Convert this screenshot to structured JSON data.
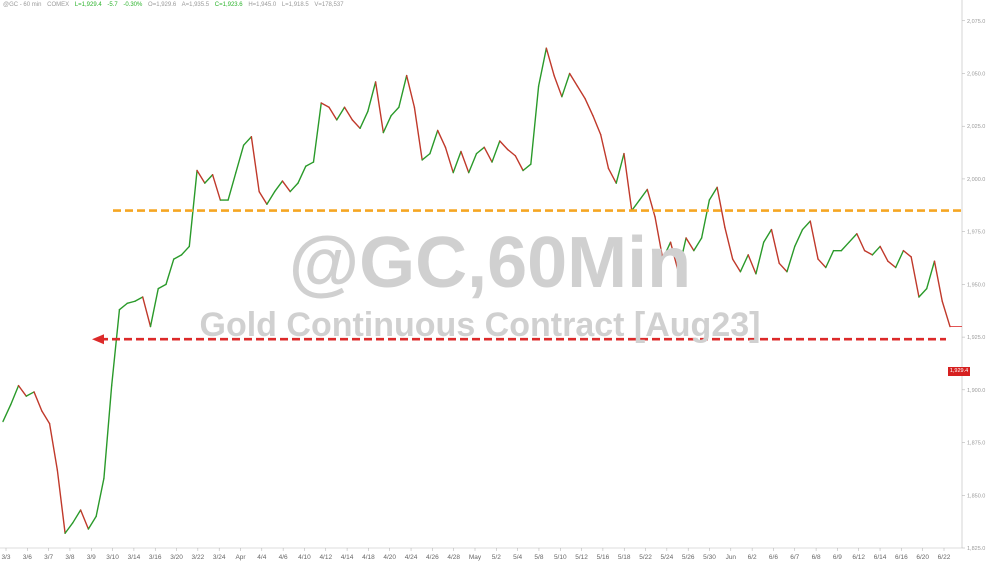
{
  "header": {
    "symbol": "@GC - 60 min",
    "exchange": "COMEX",
    "last": "L=1,929.4",
    "change": "-5.7",
    "pct": "-0.30%",
    "open": "O=1,929.6",
    "ask": "A=1,935.5",
    "close": "C=1,923.6",
    "high": "H=1,945.0",
    "low": "L=1,918.5",
    "volume": "V=178,537"
  },
  "watermark": {
    "title": "@GC,60Min",
    "subtitle": "Gold Continuous Contract [Aug23]"
  },
  "last_price_label": "1,929.4",
  "colors": {
    "up": "#2a9a2a",
    "down": "#c0392b",
    "resistance": "#f5a623",
    "support": "#dc2a2a",
    "watermark": "#d0d0d0"
  },
  "chart_data": {
    "type": "line",
    "title": "",
    "xlabel": "",
    "ylabel": "",
    "ylim": [
      1825,
      2082
    ],
    "x_tick_labels": [
      "3/3",
      "3/6",
      "3/7",
      "3/8",
      "3/9",
      "3/10",
      "3/14",
      "3/16",
      "3/20",
      "3/22",
      "3/24",
      "Apr",
      "4/4",
      "4/6",
      "4/10",
      "4/12",
      "4/14",
      "4/18",
      "4/20",
      "4/24",
      "4/26",
      "4/28",
      "May",
      "5/2",
      "5/4",
      "5/8",
      "5/10",
      "5/12",
      "5/16",
      "5/18",
      "5/22",
      "5/24",
      "5/26",
      "5/30",
      "Jun",
      "6/2",
      "6/6",
      "6/7",
      "6/8",
      "6/9",
      "6/12",
      "6/14",
      "6/16",
      "6/20",
      "6/22"
    ],
    "y_tick_labels": [
      "2,075.0",
      "2,050.0",
      "2,025.0",
      "2,000.0",
      "1,975.0",
      "1,950.0",
      "1,925.0",
      "1,900.0",
      "1,875.0",
      "1,850.0",
      "1,825.0"
    ],
    "y_tick_values": [
      2075,
      2050,
      2025,
      2000,
      1975,
      1950,
      1925,
      1900,
      1875,
      1850,
      1825
    ],
    "series": [
      {
        "values": [
          1885,
          1893,
          1902,
          1897,
          1899,
          1890,
          1884,
          1862,
          1832,
          1837,
          1843,
          1834,
          1840,
          1858,
          1902,
          1938,
          1941,
          1942,
          1944,
          1930,
          1948,
          1950,
          1962,
          1964,
          1968,
          2004,
          1998,
          2002,
          1990,
          1990,
          2003,
          2016,
          2020,
          1994,
          1988,
          1994,
          1999,
          1994,
          1998,
          2006,
          2008,
          2036,
          2034,
          2028,
          2034,
          2028,
          2024,
          2032,
          2046,
          2022,
          2030,
          2034,
          2049,
          2034,
          2009,
          2012,
          2023,
          2015,
          2003,
          2013,
          2003,
          2012,
          2015,
          2008,
          2018,
          2014,
          2011,
          2004,
          2007,
          2044,
          2062,
          2049,
          2039,
          2050,
          2044,
          2038,
          2030,
          2021,
          2005,
          1998,
          2012,
          1985,
          1990,
          1995,
          1982,
          1962,
          1970,
          1956,
          1972,
          1966,
          1972,
          1990,
          1996,
          1977,
          1962,
          1956,
          1964,
          1955,
          1970,
          1976,
          1960,
          1956,
          1968,
          1976,
          1980,
          1962,
          1958,
          1966,
          1966,
          1970,
          1974,
          1966,
          1964,
          1968,
          1961,
          1958,
          1966,
          1963,
          1944,
          1948,
          1961,
          1942,
          1930
        ]
      }
    ],
    "reference_lines": [
      {
        "kind": "resistance",
        "value": 1985
      },
      {
        "kind": "support",
        "value": 1924
      }
    ]
  }
}
